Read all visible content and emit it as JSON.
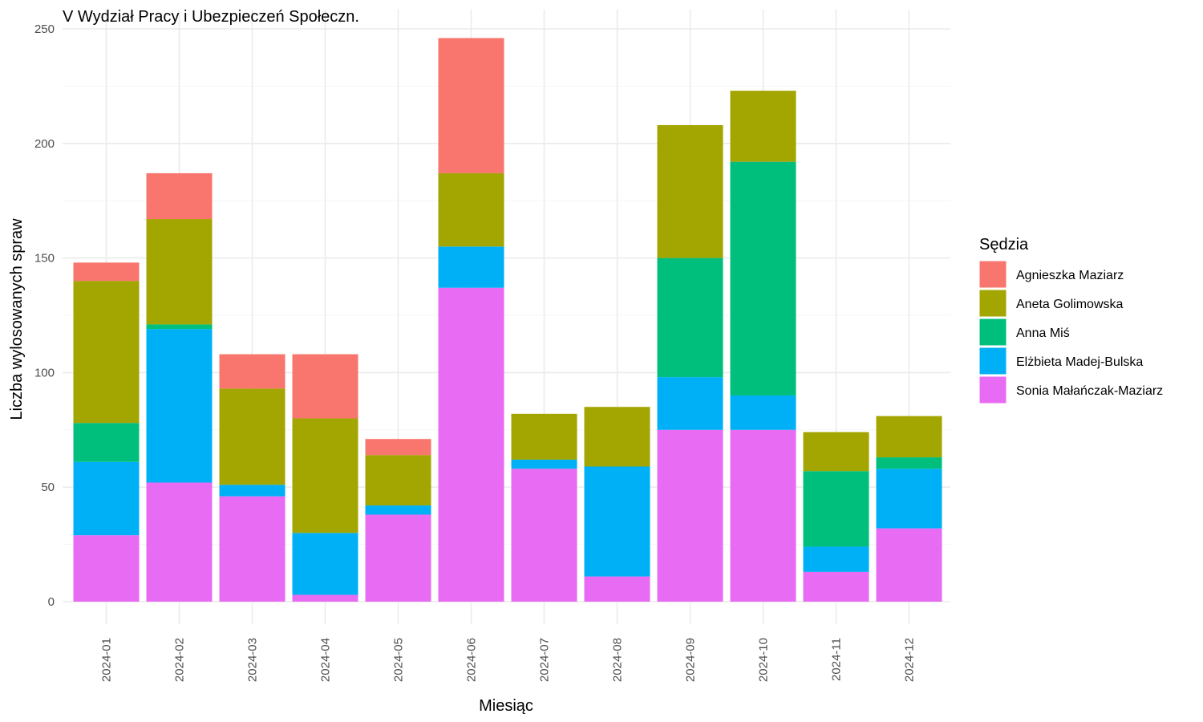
{
  "chart_data": {
    "type": "bar",
    "stacked": true,
    "title": "V Wydział Pracy i Ubezpieczeń Społeczn.",
    "xlabel": "Miesiąc",
    "ylabel": "Liczba wylosowanych spraw",
    "ylim": [
      0,
      256
    ],
    "yticks": [
      0,
      50,
      100,
      150,
      200,
      250
    ],
    "grid": true,
    "legend_position": "right",
    "legend_title": "Sędzia",
    "categories": [
      "2024-01",
      "2024-02",
      "2024-03",
      "2024-04",
      "2024-05",
      "2024-06",
      "2024-07",
      "2024-08",
      "2024-09",
      "2024-10",
      "2024-11",
      "2024-12"
    ],
    "series": [
      {
        "name": "Sonia Małańczak-Maziarz",
        "color": "#E76BF3",
        "values": [
          29,
          52,
          46,
          3,
          38,
          137,
          58,
          11,
          75,
          75,
          13,
          32
        ]
      },
      {
        "name": "Elżbieta Madej-Bulska",
        "color": "#00B0F6",
        "values": [
          32,
          67,
          5,
          27,
          4,
          18,
          4,
          48,
          23,
          15,
          11,
          26
        ]
      },
      {
        "name": "Anna Miś",
        "color": "#00BF7D",
        "values": [
          17,
          2,
          0,
          0,
          0,
          0,
          0,
          0,
          52,
          102,
          33,
          5
        ]
      },
      {
        "name": "Aneta Golimowska",
        "color": "#A3A500",
        "values": [
          62,
          46,
          42,
          50,
          22,
          32,
          20,
          26,
          58,
          31,
          17,
          18
        ]
      },
      {
        "name": "Agnieszka Maziarz",
        "color": "#F8766D",
        "values": [
          8,
          20,
          15,
          28,
          7,
          59,
          0,
          0,
          0,
          0,
          0,
          0
        ]
      }
    ],
    "legend_order": [
      "Agnieszka Maziarz",
      "Aneta Golimowska",
      "Anna Miś",
      "Elżbieta Madej-Bulska",
      "Sonia Małańczak-Maziarz"
    ]
  }
}
